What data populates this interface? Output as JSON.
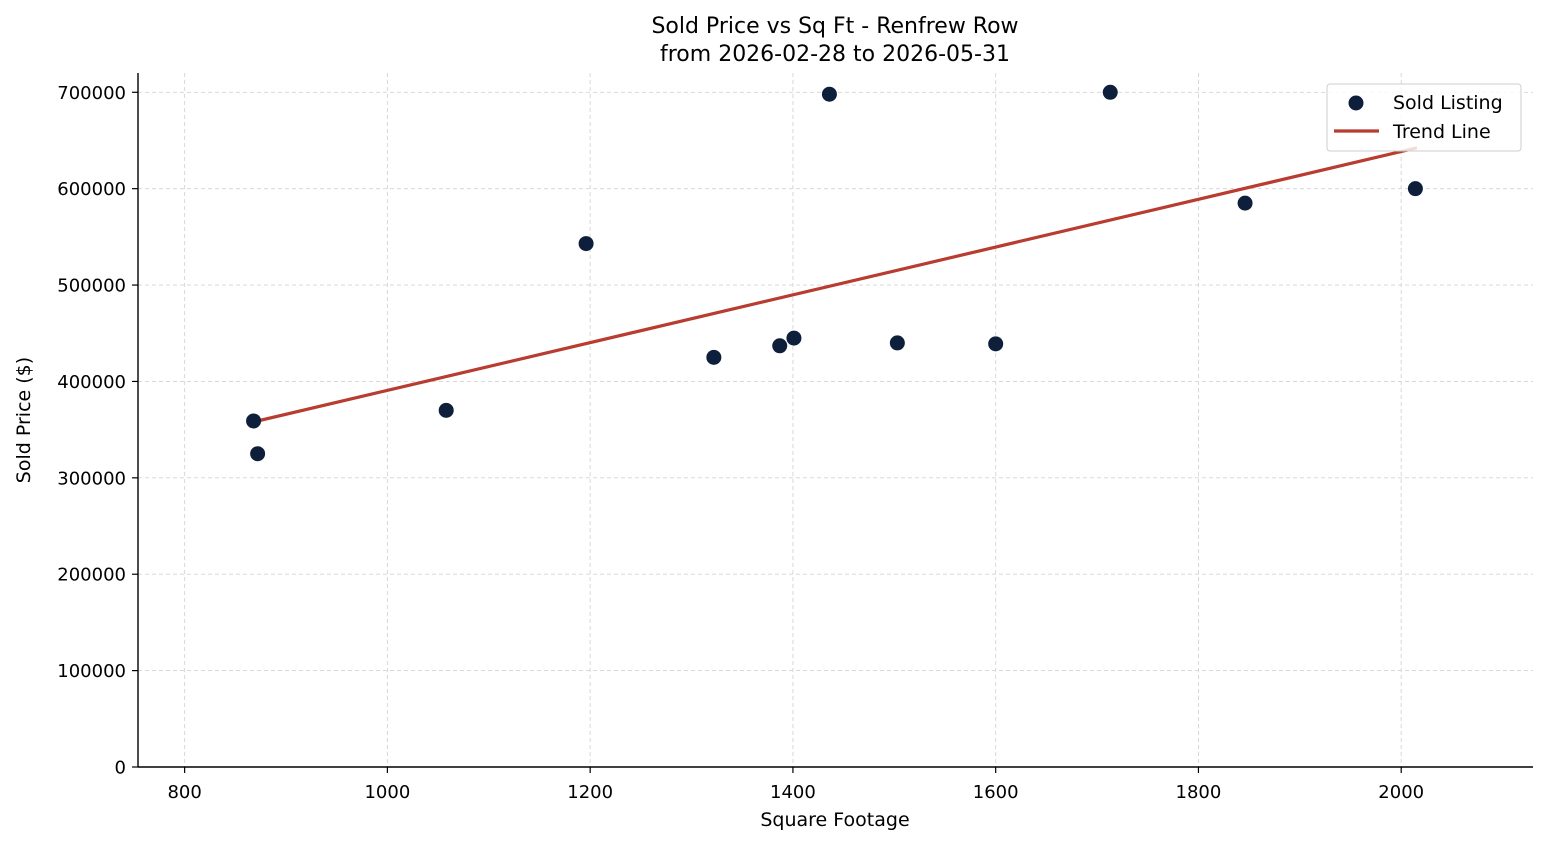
{
  "chart_data": {
    "type": "scatter",
    "title": "Sold Price vs Sq Ft - Renfrew Row",
    "subtitle": "from 2026-02-28 to 2026-05-31",
    "xlabel": "Square Footage",
    "ylabel": "Sold Price ($)",
    "xlim": [
      754,
      2130
    ],
    "ylim": [
      0,
      720000
    ],
    "xticks": [
      "800",
      "1000",
      "1200",
      "1400",
      "1600",
      "1800",
      "2000"
    ],
    "yticks": [
      "0",
      "100000",
      "200000",
      "300000",
      "400000",
      "500000",
      "600000",
      "700000"
    ],
    "grid": true,
    "legend_position": "top-right",
    "series": [
      {
        "name": "Sold Listing",
        "kind": "scatter",
        "color": "#0d1f3a",
        "points": [
          {
            "x": 868,
            "y": 359000
          },
          {
            "x": 872,
            "y": 325000
          },
          {
            "x": 1058,
            "y": 370000
          },
          {
            "x": 1196,
            "y": 543000
          },
          {
            "x": 1322,
            "y": 425000
          },
          {
            "x": 1387,
            "y": 437000
          },
          {
            "x": 1401,
            "y": 445000
          },
          {
            "x": 1436,
            "y": 698000
          },
          {
            "x": 1503,
            "y": 440000
          },
          {
            "x": 1600,
            "y": 439000
          },
          {
            "x": 1713,
            "y": 700000
          },
          {
            "x": 1846,
            "y": 585000
          },
          {
            "x": 2014,
            "y": 600000
          }
        ]
      },
      {
        "name": "Trend Line",
        "kind": "line",
        "color": "#b83c2f",
        "points": [
          {
            "x": 868,
            "y": 358000
          },
          {
            "x": 2014,
            "y": 642000
          }
        ]
      }
    ]
  }
}
